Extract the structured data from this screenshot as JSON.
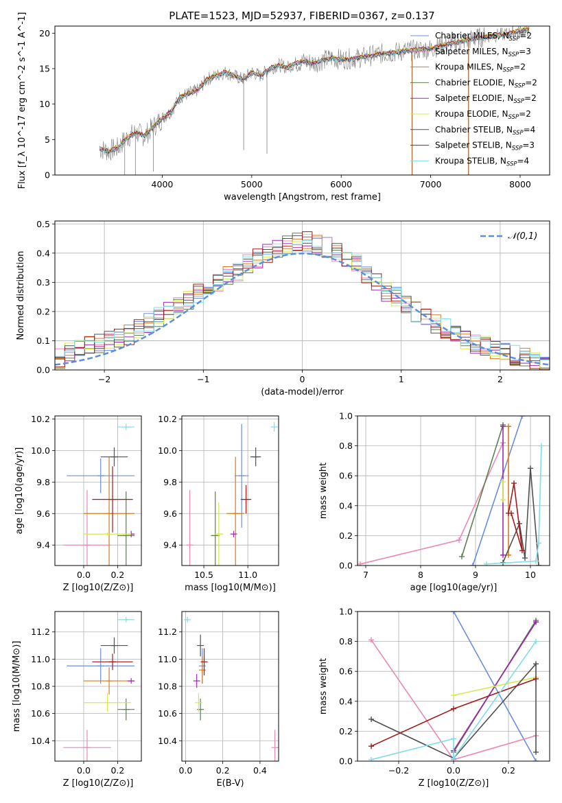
{
  "figure": {
    "title": "PLATE=1523, MJD=52937, FIBERID=0367, z=0.137"
  },
  "chart_data": [
    {
      "id": "spectrum",
      "type": "line",
      "title": "PLATE=1523, MJD=52937, FIBERID=0367, z=0.137",
      "xlabel": "wavelength [Angstrom, rest frame]",
      "ylabel": "Flux [f_λ 10^-17 erg cm^-2 s^-1 A^-1]",
      "xlim": [
        2800,
        8330
      ],
      "ylim": [
        0,
        21
      ],
      "xticks": [
        4000,
        5000,
        6000,
        7000,
        8000
      ],
      "yticks": [
        0,
        5,
        10,
        15,
        20
      ],
      "grid": false,
      "legend": "upper right",
      "observed": {
        "x": [
          3300,
          3400,
          3500,
          3600,
          3700,
          3800,
          3900,
          4000,
          4100,
          4200,
          4300,
          4400,
          4500,
          4600,
          4700,
          4800,
          4900,
          5000,
          5100,
          5200,
          5300,
          5400,
          5500,
          5600,
          5700,
          5800,
          5900,
          6000,
          6200,
          6400,
          6600,
          6800,
          7000,
          7200,
          7400,
          7600,
          7800,
          8000,
          8100
        ],
        "y": [
          3.7,
          3.4,
          3.8,
          5.2,
          6.0,
          5.5,
          6.8,
          8.0,
          9.0,
          11.0,
          11.5,
          12.0,
          13.5,
          14.0,
          14.5,
          14.0,
          13.5,
          14.5,
          14.0,
          15.0,
          15.5,
          15.2,
          15.8,
          16.0,
          15.8,
          16.2,
          16.5,
          16.3,
          16.5,
          17.0,
          17.3,
          17.6,
          17.8,
          18.5,
          19.0,
          19.5,
          19.8,
          20.3,
          20.5
        ]
      },
      "series": [
        {
          "name": "Chabrier MILES, N_SSP=2",
          "color": "#6a8de0",
          "offset": 0.1
        },
        {
          "name": "Salpeter MILES, N_SSP=3",
          "color": "#e888b6",
          "offset": -0.1
        },
        {
          "name": "Kroupa MILES, N_SSP=2",
          "color": "#d97a1e",
          "offset": 0.05
        },
        {
          "name": "Chabrier ELODIE, N_SSP=2",
          "color": "#5b7f4e",
          "offset": -0.05
        },
        {
          "name": "Salpeter ELODIE, N_SSP=2",
          "color": "#9b27ad",
          "offset": 0.0
        },
        {
          "name": "Kroupa ELODIE, N_SSP=2",
          "color": "#d4e94a",
          "offset": 0.15
        },
        {
          "name": "Chabrier STELIB, N_SSP=4",
          "color": "#505050",
          "offset": -0.15
        },
        {
          "name": "Salpeter STELIB, N_SSP=3",
          "color": "#a31919",
          "offset": 0.08
        },
        {
          "name": "Kroupa STELIB, N_SSP=4",
          "color": "#7fdde8",
          "offset": -0.08
        }
      ]
    },
    {
      "id": "residuals",
      "type": "step",
      "xlabel": "(data-model)/error",
      "ylabel": "Normed distribution",
      "xlim": [
        -2.5,
        2.5
      ],
      "ylim": [
        0,
        0.51
      ],
      "xticks": [
        -2,
        -1,
        0,
        1,
        2
      ],
      "yticks": [
        0.0,
        0.1,
        0.2,
        0.3,
        0.4,
        0.5
      ],
      "grid": true,
      "legend": "upper right",
      "reference": {
        "name": "𝒩(0,1)",
        "color": "#5b8fd9"
      },
      "bin_edges_start": -2.5,
      "bin_width": 0.1,
      "base": [
        0.04,
        0.06,
        0.07,
        0.08,
        0.09,
        0.1,
        0.11,
        0.12,
        0.14,
        0.16,
        0.18,
        0.2,
        0.22,
        0.24,
        0.26,
        0.28,
        0.3,
        0.32,
        0.34,
        0.36,
        0.38,
        0.4,
        0.42,
        0.43,
        0.44,
        0.44,
        0.43,
        0.42,
        0.4,
        0.38,
        0.36,
        0.33,
        0.3,
        0.27,
        0.25,
        0.22,
        0.2,
        0.18,
        0.16,
        0.14,
        0.12,
        0.1,
        0.09,
        0.08,
        0.07,
        0.06,
        0.05,
        0.04,
        0.03,
        0.02
      ]
    },
    {
      "id": "age-vs-Z",
      "type": "scatter",
      "xlabel": "Z [log10(Z/Z⊙)]",
      "ylabel": "age [log10(age/yr)]",
      "xlim": [
        -0.17,
        0.34
      ],
      "ylim": [
        9.27,
        10.22
      ],
      "xticks": [
        0.0,
        0.2
      ],
      "yticks": [
        9.4,
        9.6,
        9.8,
        10.0,
        10.2
      ],
      "grid": true,
      "points": [
        {
          "color": "#6a8de0",
          "x": 0.1,
          "xerr": 0.2,
          "y": 9.84,
          "yerr": 0.11
        },
        {
          "color": "#e888b6",
          "x": 0.02,
          "xerr": 0.14,
          "y": 9.4,
          "yerr": 0.35
        },
        {
          "color": "#d97a1e",
          "x": 0.15,
          "xerr": 0.15,
          "y": 9.6,
          "yerr": 0.36
        },
        {
          "color": "#5b7f4e",
          "x": 0.25,
          "xerr": 0.05,
          "y": 9.46,
          "yerr": 0.28
        },
        {
          "color": "#9b27ad",
          "x": 0.28,
          "xerr": 0.02,
          "y": 9.47,
          "yerr": 0.02
        },
        {
          "color": "#d4e94a",
          "x": 0.14,
          "xerr": 0.14,
          "y": 9.47,
          "yerr": 0.01
        },
        {
          "color": "#505050",
          "x": 0.18,
          "xerr": 0.08,
          "y": 9.96,
          "yerr": 0.06
        },
        {
          "color": "#a31919",
          "x": 0.17,
          "xerr": 0.12,
          "y": 9.69,
          "yerr": 0.21
        },
        {
          "color": "#7fdde8",
          "x": 0.25,
          "xerr": 0.05,
          "y": 10.15,
          "yerr": 0.02
        }
      ]
    },
    {
      "id": "age-vs-mass",
      "type": "scatter",
      "xlabel": "mass [log10(M/M⊙)]",
      "ylabel": "",
      "xlim": [
        10.25,
        11.35
      ],
      "ylim": [
        9.27,
        10.22
      ],
      "xticks": [
        10.5,
        11.0
      ],
      "yticks": [
        9.4,
        9.6,
        9.8,
        10.0,
        10.2
      ],
      "grid": true,
      "points": [
        {
          "color": "#6a8de0",
          "x": 10.93,
          "xerr": 0.08,
          "y": 9.84,
          "yerr": 0.33
        },
        {
          "color": "#e888b6",
          "x": 10.34,
          "xerr": 0.0,
          "y": 9.4,
          "yerr": 0.35
        },
        {
          "color": "#d97a1e",
          "x": 10.86,
          "xerr": 0.1,
          "y": 9.6,
          "yerr": 0.36
        },
        {
          "color": "#5b7f4e",
          "x": 10.63,
          "xerr": 0.05,
          "y": 9.46,
          "yerr": 0.28
        },
        {
          "color": "#9b27ad",
          "x": 10.84,
          "xerr": 0.02,
          "y": 9.47,
          "yerr": 0.02
        },
        {
          "color": "#d4e94a",
          "x": 10.67,
          "xerr": 0.05,
          "y": 9.47,
          "yerr": 0.2
        },
        {
          "color": "#505050",
          "x": 11.09,
          "xerr": 0.06,
          "y": 9.96,
          "yerr": 0.06
        },
        {
          "color": "#a31919",
          "x": 10.98,
          "xerr": 0.06,
          "y": 9.69,
          "yerr": 0.09
        },
        {
          "color": "#7fdde8",
          "x": 11.3,
          "xerr": 0.01,
          "y": 10.15,
          "yerr": 0.03
        }
      ]
    },
    {
      "id": "weight-vs-age",
      "type": "line",
      "xlabel": "age [log10(age/yr)]",
      "ylabel": "mass weight",
      "xlim": [
        6.85,
        10.35
      ],
      "ylim": [
        0,
        1
      ],
      "xticks": [
        7,
        8,
        9,
        10
      ],
      "yticks": [
        0.0,
        0.2,
        0.4,
        0.6,
        0.8,
        1.0
      ],
      "grid": true,
      "series": [
        {
          "color": "#6a8de0",
          "x": [
            8.95,
            9.85
          ],
          "y": [
            0.0,
            1.0
          ]
        },
        {
          "color": "#e888b6",
          "x": [
            6.9,
            8.7,
            9.5
          ],
          "y": [
            0.01,
            0.17,
            0.82
          ]
        },
        {
          "color": "#d97a1e",
          "x": [
            9.6,
            9.6
          ],
          "y": [
            0.07,
            0.93
          ]
        },
        {
          "color": "#5b7f4e",
          "x": [
            8.75,
            9.5
          ],
          "y": [
            0.06,
            0.94
          ]
        },
        {
          "color": "#9b27ad",
          "x": [
            9.5,
            9.5
          ],
          "y": [
            0.07,
            0.93
          ]
        },
        {
          "color": "#d4e94a",
          "x": [
            9.5,
            9.5
          ],
          "y": [
            0.44,
            0.56
          ]
        },
        {
          "color": "#505050",
          "x": [
            9.5,
            9.8,
            9.9,
            10.0,
            10.15
          ],
          "y": [
            0.02,
            0.28,
            0.05,
            0.65,
            0.0
          ]
        },
        {
          "color": "#a31919",
          "x": [
            9.6,
            9.7,
            9.85,
            9.65
          ],
          "y": [
            0.35,
            0.55,
            0.1,
            0.35
          ]
        },
        {
          "color": "#7fdde8",
          "x": [
            9.2,
            10.1,
            10.15,
            10.2
          ],
          "y": [
            0.01,
            0.03,
            0.15,
            0.8
          ]
        }
      ]
    },
    {
      "id": "mass-vs-Z",
      "type": "scatter",
      "xlabel": "Z [log10(Z/Z⊙)]",
      "ylabel": "mass [log10(M/M⊙)]",
      "xlim": [
        -0.17,
        0.34
      ],
      "ylim": [
        10.25,
        11.35
      ],
      "xticks": [
        0.0,
        0.2
      ],
      "yticks": [
        10.4,
        10.6,
        10.8,
        11.0,
        11.2
      ],
      "grid": true,
      "points": [
        {
          "color": "#6a8de0",
          "x": 0.1,
          "xerr": 0.2,
          "y": 10.95,
          "yerr": 0.13
        },
        {
          "color": "#e888b6",
          "x": 0.02,
          "xerr": 0.14,
          "y": 10.35,
          "yerr": 0.13
        },
        {
          "color": "#d97a1e",
          "x": 0.15,
          "xerr": 0.15,
          "y": 10.84,
          "yerr": 0.1
        },
        {
          "color": "#5b7f4e",
          "x": 0.25,
          "xerr": 0.05,
          "y": 10.63,
          "yerr": 0.08
        },
        {
          "color": "#9b27ad",
          "x": 0.28,
          "xerr": 0.02,
          "y": 10.84,
          "yerr": 0.02
        },
        {
          "color": "#d4e94a",
          "x": 0.14,
          "xerr": 0.14,
          "y": 10.68,
          "yerr": 0.07
        },
        {
          "color": "#505050",
          "x": 0.18,
          "xerr": 0.08,
          "y": 11.1,
          "yerr": 0.06
        },
        {
          "color": "#a31919",
          "x": 0.17,
          "xerr": 0.12,
          "y": 10.98,
          "yerr": 0.06
        },
        {
          "color": "#7fdde8",
          "x": 0.25,
          "xerr": 0.05,
          "y": 11.29,
          "yerr": 0.02
        }
      ]
    },
    {
      "id": "mass-vs-ebv",
      "type": "scatter",
      "xlabel": "E(B-V)",
      "ylabel": "",
      "xlim": [
        -0.02,
        0.5
      ],
      "ylim": [
        10.25,
        11.35
      ],
      "xticks": [
        0.0,
        0.2,
        0.4
      ],
      "yticks": [
        10.4,
        10.6,
        10.8,
        11.0,
        11.2
      ],
      "grid": true,
      "points": [
        {
          "color": "#6a8de0",
          "x": 0.09,
          "xerr": 0.0,
          "y": 10.95,
          "yerr": 0.13
        },
        {
          "color": "#e888b6",
          "x": 0.48,
          "xerr": 0.0,
          "y": 10.35,
          "yerr": 0.13
        },
        {
          "color": "#d97a1e",
          "x": 0.09,
          "xerr": 0.0,
          "y": 10.92,
          "yerr": 0.1
        },
        {
          "color": "#5b7f4e",
          "x": 0.08,
          "xerr": 0.0,
          "y": 10.63,
          "yerr": 0.08
        },
        {
          "color": "#9b27ad",
          "x": 0.06,
          "xerr": 0.0,
          "y": 10.84,
          "yerr": 0.05
        },
        {
          "color": "#d4e94a",
          "x": 0.07,
          "xerr": 0.0,
          "y": 10.68,
          "yerr": 0.07
        },
        {
          "color": "#505050",
          "x": 0.08,
          "xerr": 0.0,
          "y": 11.1,
          "yerr": 0.08
        },
        {
          "color": "#a31919",
          "x": 0.1,
          "xerr": 0.0,
          "y": 10.98,
          "yerr": 0.1
        },
        {
          "color": "#7fdde8",
          "x": 0.01,
          "xerr": 0.0,
          "y": 11.29,
          "yerr": 0.02
        }
      ]
    },
    {
      "id": "weight-vs-Z",
      "type": "line",
      "xlabel": "Z [log10(Z/Z⊙)]",
      "ylabel": "mass weight",
      "xlim": [
        -0.35,
        0.35
      ],
      "ylim": [
        0,
        1
      ],
      "xticks": [
        -0.2,
        0.0,
        0.2
      ],
      "yticks": [
        0.0,
        0.2,
        0.4,
        0.6,
        0.8,
        1.0
      ],
      "grid": true,
      "series": [
        {
          "color": "#6a8de0",
          "x": [
            0.0,
            0.3
          ],
          "y": [
            1.0,
            0.0
          ]
        },
        {
          "color": "#e888b6",
          "x": [
            -0.3,
            0.0,
            0.3
          ],
          "y": [
            0.81,
            0.01,
            0.17
          ]
        },
        {
          "color": "#d97a1e",
          "x": [
            0.0,
            0.3
          ],
          "y": [
            0.07,
            0.93
          ]
        },
        {
          "color": "#5b7f4e",
          "x": [
            0.0,
            0.3
          ],
          "y": [
            0.06,
            0.94
          ]
        },
        {
          "color": "#9b27ad",
          "x": [
            0.0,
            0.3
          ],
          "y": [
            0.07,
            0.93
          ]
        },
        {
          "color": "#d4e94a",
          "x": [
            0.0,
            0.3
          ],
          "y": [
            0.44,
            0.56
          ]
        },
        {
          "color": "#505050",
          "x": [
            -0.3,
            0.0,
            0.3,
            0.3
          ],
          "y": [
            0.28,
            0.02,
            0.65,
            0.06
          ]
        },
        {
          "color": "#a31919",
          "x": [
            -0.3,
            0.0,
            0.3
          ],
          "y": [
            0.1,
            0.35,
            0.55
          ]
        },
        {
          "color": "#7fdde8",
          "x": [
            -0.3,
            0.0,
            0.0,
            0.3
          ],
          "y": [
            0.01,
            0.15,
            0.02,
            0.8
          ]
        }
      ]
    }
  ]
}
